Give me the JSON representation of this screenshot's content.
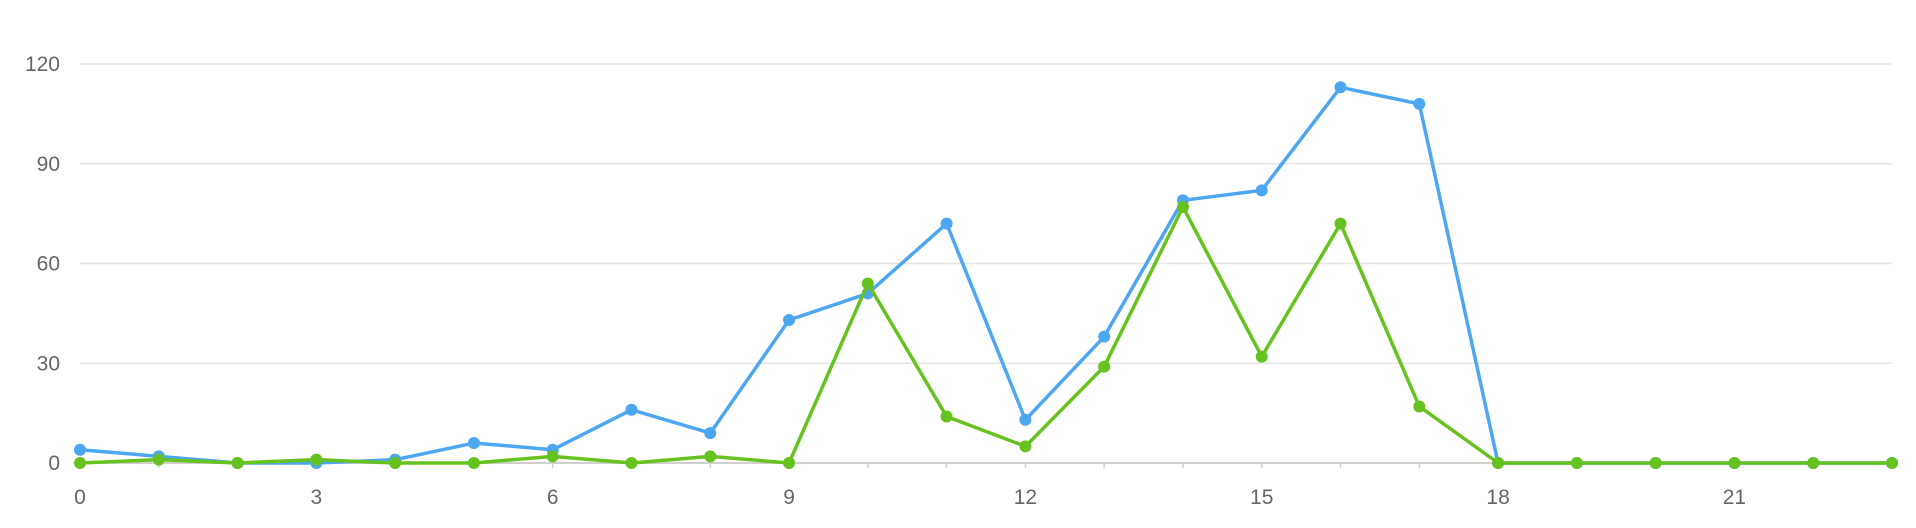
{
  "chart_data": {
    "type": "line",
    "title": "",
    "xlabel": "",
    "ylabel": "",
    "xlim": [
      0,
      23
    ],
    "ylim": [
      0,
      120
    ],
    "x": [
      0,
      1,
      2,
      3,
      4,
      5,
      6,
      7,
      8,
      9,
      10,
      11,
      12,
      13,
      14,
      15,
      16,
      17,
      18,
      19,
      20,
      21,
      22,
      23
    ],
    "x_ticks": [
      "0",
      "3",
      "6",
      "9",
      "12",
      "15",
      "18",
      "21"
    ],
    "y_ticks": [
      "0",
      "30",
      "60",
      "90",
      "120"
    ],
    "grid": true,
    "legend": "none",
    "series": [
      {
        "color": "#4da6f0",
        "values": [
          4,
          2,
          0,
          0,
          1,
          6,
          4,
          16,
          9,
          43,
          51,
          72,
          13,
          38,
          79,
          82,
          113,
          108,
          0,
          0,
          0,
          0,
          0,
          0
        ]
      },
      {
        "color": "#66c21e",
        "values": [
          0,
          1,
          0,
          1,
          0,
          0,
          2,
          0,
          2,
          0,
          54,
          14,
          5,
          29,
          77,
          32,
          72,
          17,
          0,
          0,
          0,
          0,
          0,
          0
        ]
      }
    ]
  }
}
